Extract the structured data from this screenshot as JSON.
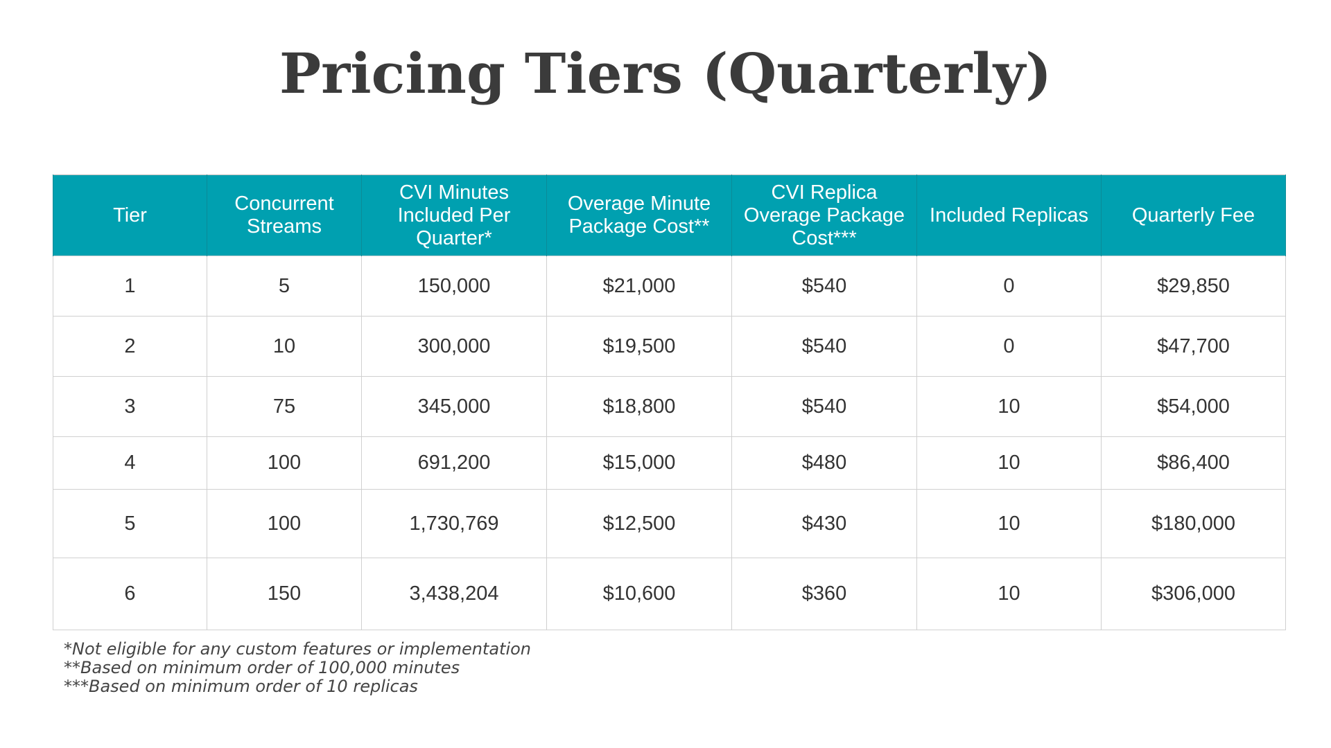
{
  "title": "Pricing Tiers (Quarterly)",
  "table": {
    "headers": [
      "Tier",
      "Concurrent Streams",
      "CVI Minutes Included Per Quarter*",
      "Overage Minute Package Cost**",
      "CVI Replica Overage Package Cost***",
      "Included Replicas",
      "Quarterly Fee"
    ],
    "rows": [
      [
        "1",
        "5",
        "150,000",
        "$21,000",
        "$540",
        "0",
        "$29,850"
      ],
      [
        "2",
        "10",
        "300,000",
        "$19,500",
        "$540",
        "0",
        "$47,700"
      ],
      [
        "3",
        "75",
        "345,000",
        "$18,800",
        "$540",
        "10",
        "$54,000"
      ],
      [
        "4",
        "100",
        "691,200",
        "$15,000",
        "$480",
        "10",
        "$86,400"
      ],
      [
        "5",
        "100",
        "1,730,769",
        "$12,500",
        "$430",
        "10",
        "$180,000"
      ],
      [
        "6",
        "150",
        "3,438,204",
        "$10,600",
        "$360",
        "10",
        "$306,000"
      ]
    ]
  },
  "footnotes": [
    "*Not eligible for any custom features or implementation",
    "**Based on minimum order of 100,000 minutes",
    "***Based on minimum order of 10 replicas"
  ],
  "colors": {
    "header_background": "#00a0b0",
    "header_text": "#ffffff",
    "body_text": "#333333",
    "grid_line": "#d0d0d0"
  }
}
